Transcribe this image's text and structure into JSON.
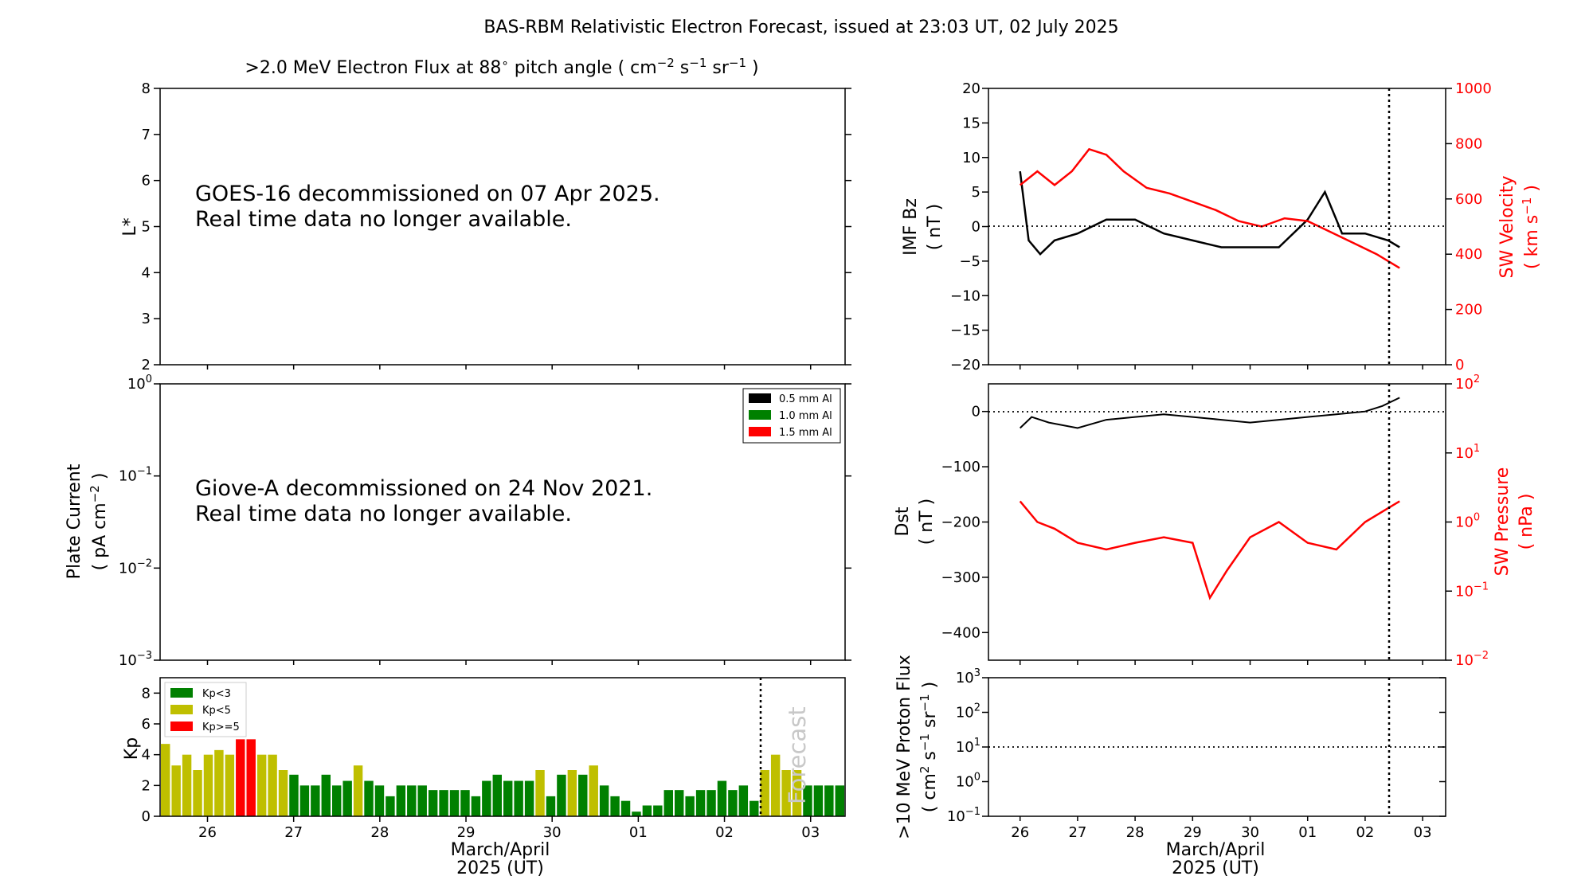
{
  "header": {
    "title": "BAS-RBM Relativistic Electron Forecast, issued at 23:03 UT, 02 July 2025"
  },
  "chart_data": [
    {
      "id": "flux",
      "type": "heatmap",
      "title_main": ">2.0 MeV Electron Flux at 88",
      "title_deg": "∘",
      "title_mid": " pitch angle ( cm",
      "title_sup1": "−2",
      "title_s": " s",
      "title_sup2": "−1",
      "title_sr": " sr",
      "title_sup3": "−1",
      "title_end": " )",
      "ylabel": "L*",
      "ylim": [
        2,
        8
      ],
      "yticks": [
        "2",
        "3",
        "4",
        "5",
        "6",
        "7",
        "8"
      ],
      "note_line1": "GOES-16 decommissioned on 07 Apr 2025.",
      "note_line2": "Real time data no longer available."
    },
    {
      "id": "plate",
      "type": "line",
      "ylabel_line1": "Plate Current",
      "ylabel_line2_a": "( pA cm",
      "ylabel_line2_sup": "−2",
      "ylabel_line2_b": " )",
      "yscale": "log",
      "yticks": [
        {
          "base": "10",
          "exp": "0"
        },
        {
          "base": "10",
          "exp": "−1"
        },
        {
          "base": "10",
          "exp": "−2"
        },
        {
          "base": "10",
          "exp": "−3"
        }
      ],
      "legend": [
        {
          "name": "0.5 mm Al",
          "color": "#000000"
        },
        {
          "name": "1.0 mm Al",
          "color": "#008000"
        },
        {
          "name": "1.5 mm Al",
          "color": "#ff0000"
        }
      ],
      "note_line1": "Giove-A decommissioned on 24 Nov 2021.",
      "note_line2": "Real time data no longer available."
    },
    {
      "id": "kp",
      "type": "bar",
      "ylabel": "Kp",
      "ylim": [
        0,
        9
      ],
      "yticks": [
        "0",
        "2",
        "4",
        "6",
        "8"
      ],
      "xticks": [
        "26",
        "27",
        "28",
        "29",
        "30",
        "01",
        "02",
        "03"
      ],
      "xlabel_line1": "March/April",
      "xlabel_line2": "2025 (UT)",
      "forecast_label": "Forecast",
      "legend": [
        {
          "name": "Kp<3",
          "color": "#008000"
        },
        {
          "name": "Kp<5",
          "color": "#bfbf00"
        },
        {
          "name": "Kp>=5",
          "color": "#ff0000"
        }
      ],
      "values": [
        4.7,
        3.3,
        4.0,
        3.0,
        4.0,
        4.3,
        4.0,
        5.0,
        5.0,
        4.0,
        4.0,
        3.0,
        2.7,
        2.0,
        2.0,
        2.7,
        2.0,
        2.3,
        3.3,
        2.3,
        2.0,
        1.3,
        2.0,
        2.0,
        2.0,
        1.7,
        1.7,
        1.7,
        1.7,
        1.3,
        2.3,
        2.7,
        2.3,
        2.3,
        2.3,
        3.0,
        1.3,
        2.7,
        3.0,
        2.7,
        3.3,
        2.0,
        1.3,
        1.0,
        0.3,
        0.7,
        0.7,
        1.7,
        1.7,
        1.3,
        1.7,
        1.7,
        2.3,
        1.7,
        2.0,
        1.0,
        3.0,
        4.0,
        3.0,
        3.0,
        2.0,
        2.0,
        2.0,
        2.0
      ]
    },
    {
      "id": "imf",
      "type": "line",
      "ylabel_line1": "IMF Bz",
      "ylabel_line2": "( nT )",
      "ylim": [
        -20,
        20
      ],
      "yticks": [
        "20",
        "15",
        "10",
        "5",
        "0",
        "−5",
        "−10",
        "−15",
        "−20"
      ],
      "y2label_line1": "SW Velocity",
      "y2label_line2_a": "( km s",
      "y2label_line2_sup": "−1",
      "y2label_line2_b": " )",
      "y2lim": [
        0,
        1000
      ],
      "y2ticks": [
        "1000",
        "800",
        "600",
        "400",
        "200",
        "0"
      ],
      "series": [
        {
          "color": "#000000",
          "days": [
            0.0,
            0.15,
            0.35,
            0.6,
            1.0,
            1.5,
            2.0,
            2.5,
            3.0,
            3.5,
            4.0,
            4.5,
            5.0,
            5.3,
            5.6,
            6.0,
            6.4,
            6.6
          ],
          "values": [
            8,
            -2,
            -4,
            -2,
            -1,
            1,
            1,
            -1,
            -2,
            -3,
            -3,
            -3,
            1,
            5,
            -1,
            -1,
            -2,
            -3
          ]
        },
        {
          "color": "#ff0000",
          "days": [
            0.0,
            0.3,
            0.6,
            0.9,
            1.2,
            1.5,
            1.8,
            2.2,
            2.6,
            3.0,
            3.4,
            3.8,
            4.2,
            4.6,
            5.0,
            5.4,
            5.8,
            6.2,
            6.6
          ],
          "values": [
            650,
            700,
            650,
            700,
            780,
            760,
            700,
            640,
            620,
            590,
            560,
            520,
            500,
            530,
            520,
            480,
            440,
            400,
            350
          ]
        }
      ]
    },
    {
      "id": "dst",
      "type": "line",
      "ylabel_line1": "Dst",
      "ylabel_line2": "( nT )",
      "ylim": [
        -450,
        50
      ],
      "yticks": [
        "0",
        "−100",
        "−200",
        "−300",
        "−400"
      ],
      "y2label_line1": "SW Pressure",
      "y2label_line2": "( nPa )",
      "y2scale": "log",
      "y2ticks": [
        {
          "base": "10",
          "exp": "2"
        },
        {
          "base": "10",
          "exp": "1"
        },
        {
          "base": "10",
          "exp": "0"
        },
        {
          "base": "10",
          "exp": "−1"
        },
        {
          "base": "10",
          "exp": "−2"
        }
      ],
      "series": [
        {
          "color": "#000000",
          "days": [
            0.0,
            0.2,
            0.5,
            1.0,
            1.5,
            2.0,
            2.5,
            3.0,
            3.5,
            4.0,
            4.5,
            5.0,
            5.5,
            6.0,
            6.3,
            6.6
          ],
          "values": [
            -30,
            -10,
            -20,
            -30,
            -15,
            -10,
            -5,
            -10,
            -15,
            -20,
            -15,
            -10,
            -5,
            0,
            10,
            25
          ]
        },
        {
          "color": "#ff0000",
          "days": [
            0.0,
            0.3,
            0.6,
            1.0,
            1.5,
            2.0,
            2.5,
            3.0,
            3.3,
            3.6,
            4.0,
            4.5,
            5.0,
            5.5,
            6.0,
            6.6
          ],
          "values": [
            2.0,
            1.0,
            0.8,
            0.5,
            0.4,
            0.5,
            0.6,
            0.5,
            0.08,
            0.2,
            0.6,
            1.0,
            0.5,
            0.4,
            1.0,
            2.0
          ]
        }
      ]
    },
    {
      "id": "proton",
      "type": "line",
      "ylabel_line1": ">10 MeV Proton Flux",
      "ylabel_line2_a": "( cm",
      "ylabel_line2_sup1": "2",
      "ylabel_line2_b": " s",
      "ylabel_line2_sup2": "−1",
      "ylabel_line2_c": " sr",
      "ylabel_line2_sup3": "−1",
      "ylabel_line2_d": " )",
      "yscale": "log",
      "yticks": [
        {
          "base": "10",
          "exp": "3"
        },
        {
          "base": "10",
          "exp": "2"
        },
        {
          "base": "10",
          "exp": "1"
        },
        {
          "base": "10",
          "exp": "0"
        },
        {
          "base": "10",
          "exp": "−1"
        }
      ],
      "xticks": [
        "26",
        "27",
        "28",
        "29",
        "30",
        "01",
        "02",
        "03"
      ],
      "xlabel_line1": "March/April",
      "xlabel_line2": "2025 (UT)"
    }
  ]
}
